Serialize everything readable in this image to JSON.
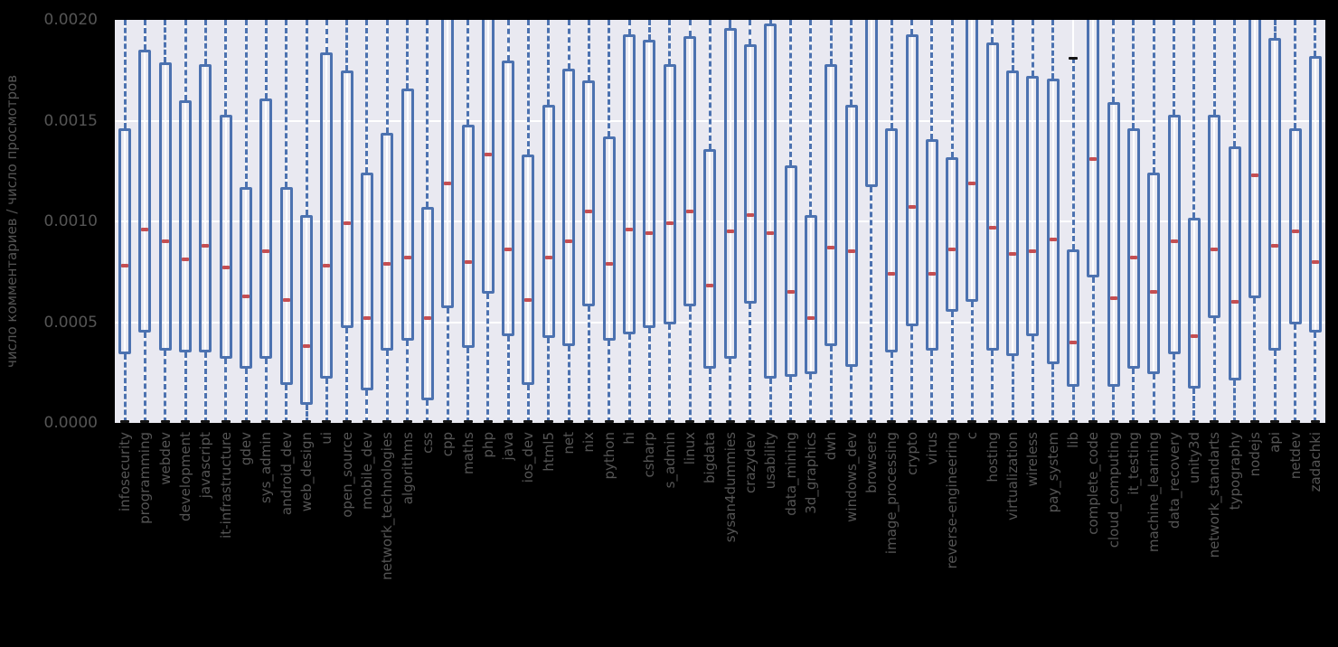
{
  "figure": {
    "background": "#000000"
  },
  "chart_data": {
    "type": "boxplot",
    "title": "",
    "xlabel": "",
    "ylabel": "число комментариев / число просмотров",
    "ylim": [
      0.0,
      0.002
    ],
    "yticks": [
      0.0,
      0.0005,
      0.001,
      0.0015,
      0.002
    ],
    "ytick_labels": [
      "0.0000",
      "0.0005",
      "0.0010",
      "0.0015",
      "0.0020"
    ],
    "grid": "white horizontal and vertical gridlines on light axes background",
    "legend_position": "none",
    "colors": {
      "axes_background": "#e9e9f1",
      "grid": "#ffffff",
      "box_edge": "#4c72b0",
      "whisker": "#4c72b0",
      "median": "#c44e52",
      "cap": "#141414",
      "text": "#555555",
      "figure_background": "#000000"
    },
    "clip_note": "values equal to 0.0021 mean the box/whisker is clipped by the top axis limit 0.002; whisker_low 0 has a black cap at the bottom edge; browsers median is above the visible range (null)",
    "categories": [
      "infosecurity",
      "programming",
      "webdev",
      "development",
      "javascript",
      "it-infrastructure",
      "gdev",
      "sys_admin",
      "android_dev",
      "web_design",
      "ui",
      "open_source",
      "mobile_dev",
      "network_technologies",
      "algorithms",
      "css",
      "cpp",
      "maths",
      "php",
      "java",
      "ios_dev",
      "html5",
      "net",
      "nix",
      "python",
      "hi",
      "csharp",
      "s_admin",
      "linux",
      "bigdata",
      "sysan4dummies",
      "crazydev",
      "usability",
      "data_mining",
      "3d_graphics",
      "dwh",
      "windows_dev",
      "browsers",
      "image_processing",
      "crypto",
      "virus",
      "reverse-engineering",
      "c",
      "hosting",
      "virtualization",
      "wireless",
      "pay_system",
      "lib",
      "complete_code",
      "cloud_computing",
      "it_testing",
      "machine_learning",
      "data_recovery",
      "unity3d",
      "network_standarts",
      "typography",
      "nodejs",
      "api",
      "netdev",
      "zadachki"
    ],
    "boxes": [
      {
        "label": "infosecurity",
        "whisker_low": 0,
        "q1": 0.00034,
        "median": 0.00078,
        "q3": 0.00146,
        "whisker_high": 0.0021
      },
      {
        "label": "programming",
        "whisker_low": 0,
        "q1": 0.00045,
        "median": 0.00096,
        "q3": 0.00185,
        "whisker_high": 0.0021
      },
      {
        "label": "webdev",
        "whisker_low": 0,
        "q1": 0.00036,
        "median": 0.0009,
        "q3": 0.00179,
        "whisker_high": 0.0021
      },
      {
        "label": "development",
        "whisker_low": 0,
        "q1": 0.00035,
        "median": 0.00081,
        "q3": 0.0016,
        "whisker_high": 0.0021
      },
      {
        "label": "javascript",
        "whisker_low": 0,
        "q1": 0.00035,
        "median": 0.00088,
        "q3": 0.00178,
        "whisker_high": 0.0021
      },
      {
        "label": "it-infrastructure",
        "whisker_low": 0,
        "q1": 0.00032,
        "median": 0.00077,
        "q3": 0.00153,
        "whisker_high": 0.0021
      },
      {
        "label": "gdev",
        "whisker_low": 0,
        "q1": 0.00027,
        "median": 0.00063,
        "q3": 0.00117,
        "whisker_high": 0.0021
      },
      {
        "label": "sys_admin",
        "whisker_low": 0,
        "q1": 0.00032,
        "median": 0.00085,
        "q3": 0.00161,
        "whisker_high": 0.0021
      },
      {
        "label": "android_dev",
        "whisker_low": 0,
        "q1": 0.00019,
        "median": 0.00061,
        "q3": 0.00117,
        "whisker_high": 0.0021
      },
      {
        "label": "web_design",
        "whisker_low": 0,
        "q1": 9e-05,
        "median": 0.00038,
        "q3": 0.00103,
        "whisker_high": 0.0021
      },
      {
        "label": "ui",
        "whisker_low": 0,
        "q1": 0.00022,
        "median": 0.00078,
        "q3": 0.00184,
        "whisker_high": 0.0021
      },
      {
        "label": "open_source",
        "whisker_low": 0,
        "q1": 0.00047,
        "median": 0.00099,
        "q3": 0.00175,
        "whisker_high": 0.0021
      },
      {
        "label": "mobile_dev",
        "whisker_low": 0,
        "q1": 0.00016,
        "median": 0.00052,
        "q3": 0.00124,
        "whisker_high": 0.0021
      },
      {
        "label": "network_technologies",
        "whisker_low": 0,
        "q1": 0.00036,
        "median": 0.00079,
        "q3": 0.00144,
        "whisker_high": 0.0021
      },
      {
        "label": "algorithms",
        "whisker_low": 0,
        "q1": 0.00041,
        "median": 0.00082,
        "q3": 0.00166,
        "whisker_high": 0.0021
      },
      {
        "label": "css",
        "whisker_low": 0,
        "q1": 0.00011,
        "median": 0.00052,
        "q3": 0.00107,
        "whisker_high": 0.0021
      },
      {
        "label": "cpp",
        "whisker_low": 0,
        "q1": 0.00057,
        "median": 0.00119,
        "q3": 0.0021,
        "whisker_high": 0.0021
      },
      {
        "label": "maths",
        "whisker_low": 0,
        "q1": 0.00037,
        "median": 0.0008,
        "q3": 0.00148,
        "whisker_high": 0.0021
      },
      {
        "label": "php",
        "whisker_low": 0,
        "q1": 0.00064,
        "median": 0.00133,
        "q3": 0.0021,
        "whisker_high": 0.0021
      },
      {
        "label": "java",
        "whisker_low": 0,
        "q1": 0.00043,
        "median": 0.00086,
        "q3": 0.0018,
        "whisker_high": 0.0021
      },
      {
        "label": "ios_dev",
        "whisker_low": 0,
        "q1": 0.00019,
        "median": 0.00061,
        "q3": 0.00133,
        "whisker_high": 0.0021
      },
      {
        "label": "html5",
        "whisker_low": 0,
        "q1": 0.00042,
        "median": 0.00082,
        "q3": 0.00158,
        "whisker_high": 0.0021
      },
      {
        "label": "net",
        "whisker_low": 0,
        "q1": 0.00038,
        "median": 0.0009,
        "q3": 0.00176,
        "whisker_high": 0.0021
      },
      {
        "label": "nix",
        "whisker_low": 0,
        "q1": 0.00058,
        "median": 0.00105,
        "q3": 0.0017,
        "whisker_high": 0.0021
      },
      {
        "label": "python",
        "whisker_low": 0,
        "q1": 0.00041,
        "median": 0.00079,
        "q3": 0.00142,
        "whisker_high": 0.0021
      },
      {
        "label": "hi",
        "whisker_low": 0,
        "q1": 0.00044,
        "median": 0.00096,
        "q3": 0.00193,
        "whisker_high": 0.0021
      },
      {
        "label": "csharp",
        "whisker_low": 0,
        "q1": 0.00047,
        "median": 0.00094,
        "q3": 0.0019,
        "whisker_high": 0.0021
      },
      {
        "label": "s_admin",
        "whisker_low": 0,
        "q1": 0.00049,
        "median": 0.00099,
        "q3": 0.00178,
        "whisker_high": 0.0021
      },
      {
        "label": "linux",
        "whisker_low": 0,
        "q1": 0.00058,
        "median": 0.00105,
        "q3": 0.00192,
        "whisker_high": 0.0021
      },
      {
        "label": "bigdata",
        "whisker_low": 0,
        "q1": 0.00027,
        "median": 0.00068,
        "q3": 0.00136,
        "whisker_high": 0.0021
      },
      {
        "label": "sysan4dummies",
        "whisker_low": 0,
        "q1": 0.00032,
        "median": 0.00095,
        "q3": 0.00196,
        "whisker_high": 0.0021
      },
      {
        "label": "crazydev",
        "whisker_low": 0,
        "q1": 0.00059,
        "median": 0.00103,
        "q3": 0.00188,
        "whisker_high": 0.0021
      },
      {
        "label": "usability",
        "whisker_low": 0,
        "q1": 0.00022,
        "median": 0.00094,
        "q3": 0.00198,
        "whisker_high": 0.0021
      },
      {
        "label": "data_mining",
        "whisker_low": 0,
        "q1": 0.00023,
        "median": 0.00065,
        "q3": 0.00128,
        "whisker_high": 0.0021
      },
      {
        "label": "3d_graphics",
        "whisker_low": 0,
        "q1": 0.00024,
        "median": 0.00052,
        "q3": 0.00103,
        "whisker_high": 0.0021
      },
      {
        "label": "dwh",
        "whisker_low": 0,
        "q1": 0.00038,
        "median": 0.00087,
        "q3": 0.00178,
        "whisker_high": 0.0021
      },
      {
        "label": "windows_dev",
        "whisker_low": 0,
        "q1": 0.00028,
        "median": 0.00085,
        "q3": 0.00158,
        "whisker_high": 0.0021
      },
      {
        "label": "browsers",
        "whisker_low": 0,
        "q1": 0.00117,
        "median": null,
        "q3": 0.0021,
        "whisker_high": 0.0021
      },
      {
        "label": "image_processing",
        "whisker_low": 0,
        "q1": 0.00035,
        "median": 0.00074,
        "q3": 0.00146,
        "whisker_high": 0.0021
      },
      {
        "label": "crypto",
        "whisker_low": 0,
        "q1": 0.00048,
        "median": 0.00107,
        "q3": 0.00193,
        "whisker_high": 0.0021
      },
      {
        "label": "virus",
        "whisker_low": 0,
        "q1": 0.00036,
        "median": 0.00074,
        "q3": 0.00141,
        "whisker_high": 0.0021
      },
      {
        "label": "reverse-engineering",
        "whisker_low": 0,
        "q1": 0.00055,
        "median": 0.00086,
        "q3": 0.00132,
        "whisker_high": 0.0021
      },
      {
        "label": "c",
        "whisker_low": 0,
        "q1": 0.0006,
        "median": 0.00119,
        "q3": 0.0021,
        "whisker_high": 0.0021
      },
      {
        "label": "hosting",
        "whisker_low": 0,
        "q1": 0.00036,
        "median": 0.00097,
        "q3": 0.00189,
        "whisker_high": 0.0021
      },
      {
        "label": "virtualization",
        "whisker_low": 0,
        "q1": 0.00033,
        "median": 0.00084,
        "q3": 0.00175,
        "whisker_high": 0.0021
      },
      {
        "label": "wireless",
        "whisker_low": 0,
        "q1": 0.00043,
        "median": 0.00085,
        "q3": 0.00172,
        "whisker_high": 0.0021
      },
      {
        "label": "pay_system",
        "whisker_low": 0,
        "q1": 0.00029,
        "median": 0.00091,
        "q3": 0.00171,
        "whisker_high": 0.0021
      },
      {
        "label": "lib",
        "whisker_low": 0,
        "q1": 0.00018,
        "median": 0.0004,
        "q3": 0.00086,
        "whisker_high": 0.00181
      },
      {
        "label": "complete_code",
        "whisker_low": 0,
        "q1": 0.00072,
        "median": 0.00131,
        "q3": 0.0021,
        "whisker_high": 0.0021
      },
      {
        "label": "cloud_computing",
        "whisker_low": 0,
        "q1": 0.00018,
        "median": 0.00062,
        "q3": 0.00159,
        "whisker_high": 0.0021
      },
      {
        "label": "it_testing",
        "whisker_low": 0,
        "q1": 0.00027,
        "median": 0.00082,
        "q3": 0.00146,
        "whisker_high": 0.0021
      },
      {
        "label": "machine_learning",
        "whisker_low": 0,
        "q1": 0.00024,
        "median": 0.00065,
        "q3": 0.00124,
        "whisker_high": 0.0021
      },
      {
        "label": "data_recovery",
        "whisker_low": 0,
        "q1": 0.00034,
        "median": 0.0009,
        "q3": 0.00153,
        "whisker_high": 0.0021
      },
      {
        "label": "unity3d",
        "whisker_low": 0,
        "q1": 0.00017,
        "median": 0.00043,
        "q3": 0.00102,
        "whisker_high": 0.0021
      },
      {
        "label": "network_standarts",
        "whisker_low": 0,
        "q1": 0.00052,
        "median": 0.00086,
        "q3": 0.00153,
        "whisker_high": 0.0021
      },
      {
        "label": "typography",
        "whisker_low": 0,
        "q1": 0.00021,
        "median": 0.0006,
        "q3": 0.00137,
        "whisker_high": 0.0021
      },
      {
        "label": "nodejs",
        "whisker_low": 0,
        "q1": 0.00062,
        "median": 0.00123,
        "q3": 0.0021,
        "whisker_high": 0.0021
      },
      {
        "label": "api",
        "whisker_low": 0,
        "q1": 0.00036,
        "median": 0.00088,
        "q3": 0.00191,
        "whisker_high": 0.0021
      },
      {
        "label": "netdev",
        "whisker_low": 0,
        "q1": 0.00049,
        "median": 0.00095,
        "q3": 0.00146,
        "whisker_high": 0.0021
      },
      {
        "label": "zadachki",
        "whisker_low": 0,
        "q1": 0.00045,
        "median": 0.0008,
        "q3": 0.00182,
        "whisker_high": 0.0021
      }
    ]
  }
}
